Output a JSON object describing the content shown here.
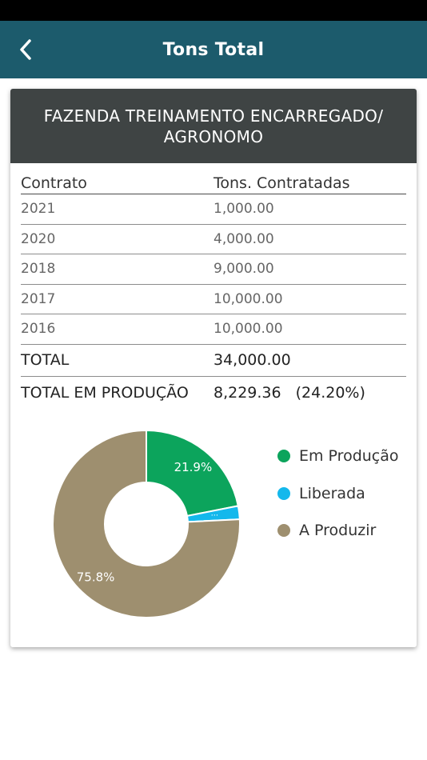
{
  "header": {
    "title": "Tons Total"
  },
  "card": {
    "title_line1": "FAZENDA TREINAMENTO ENCARREGADO/",
    "title_line2": "AGRONOMO"
  },
  "table": {
    "columns": [
      "Contrato",
      "Tons. Contratadas"
    ],
    "rows": [
      {
        "contrato": "2021",
        "tons": "1,000.00"
      },
      {
        "contrato": "2020",
        "tons": "4,000.00"
      },
      {
        "contrato": "2018",
        "tons": "9,000.00"
      },
      {
        "contrato": "2017",
        "tons": "10,000.00"
      },
      {
        "contrato": "2016",
        "tons": "10,000.00"
      }
    ],
    "total_label": "TOTAL",
    "total_value": "34,000.00",
    "prod_label": "TOTAL EM PRODUÇÃO",
    "prod_value": "8,229.36",
    "prod_pct": "(24.20%)"
  },
  "chart_data": {
    "type": "pie",
    "categories": [
      "Em Produção",
      "Liberada",
      "A Produzir"
    ],
    "values": [
      21.9,
      2.3,
      75.8
    ],
    "colors": [
      "#0ca45c",
      "#14b8ec",
      "#9e8f6f"
    ],
    "data_labels": [
      "21.9%",
      "...",
      "75.8%"
    ],
    "donut": true
  },
  "legend": {
    "items": [
      {
        "label": "Em Produção",
        "color": "#0ca45c"
      },
      {
        "label": "Liberada",
        "color": "#14b8ec"
      },
      {
        "label": "A Produzir",
        "color": "#9e8f6f"
      }
    ]
  },
  "colors": {
    "app_bar": "#1c5b6c",
    "card_header": "#3f4444"
  },
  "icons": {
    "back": "chevron-left-icon"
  }
}
